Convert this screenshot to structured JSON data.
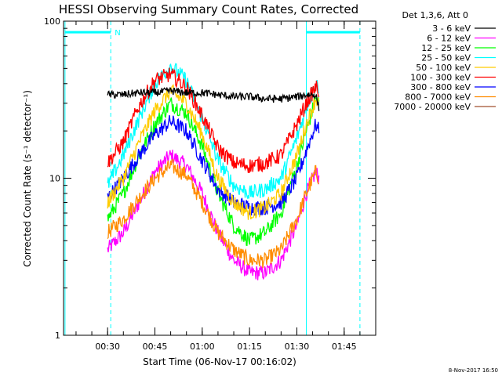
{
  "chart_data": {
    "type": "line",
    "title": "HESSI Observing Summary Count Rates, Corrected",
    "xlabel": "Start Time (06-Nov-17 00:16:02)",
    "ylabel": "Corrected Count Rate (s⁻¹ detector⁻¹)",
    "y_scale": "log",
    "ylim": [
      1,
      100
    ],
    "xlim": [
      "00:16:02",
      "01:55:00"
    ],
    "x_ticks": [
      "00:30",
      "00:45",
      "01:00",
      "01:15",
      "01:30",
      "01:45"
    ],
    "y_ticks": [
      "1",
      "10",
      "100"
    ],
    "legend_title": "Det 1,3,6, Att 0",
    "legend_position": "right",
    "timestamp": "8-Nov-2017 16:50",
    "annotations": [
      {
        "time": "00:31",
        "label": "N"
      }
    ],
    "markers": {
      "solid_vertical": [
        "00:16:30",
        "01:33"
      ],
      "dashed_vertical": [
        "00:31",
        "01:50"
      ],
      "horizontal_bars": [
        {
          "from": "00:16:30",
          "to": "00:31",
          "value": 85
        },
        {
          "from": "01:33",
          "to": "01:50",
          "value": 85
        }
      ]
    },
    "series": [
      {
        "name": "3 - 6 keV",
        "color": "#000000",
        "x": [
          "00:30",
          "00:35",
          "00:40",
          "00:45",
          "00:50",
          "00:55",
          "01:00",
          "01:05",
          "01:10",
          "01:15",
          "01:20",
          "01:25",
          "01:30",
          "01:33",
          "01:36",
          "01:37"
        ],
        "y": [
          34,
          34,
          35,
          35,
          36,
          35,
          35,
          34,
          33,
          33,
          32,
          32,
          33,
          34,
          34,
          28
        ]
      },
      {
        "name": "6 - 12 keV",
        "color": "#ff00ff",
        "x": [
          "00:30",
          "00:35",
          "00:40",
          "00:45",
          "00:50",
          "00:55",
          "01:00",
          "01:05",
          "01:10",
          "01:15",
          "01:20",
          "01:25",
          "01:30",
          "01:33",
          "01:36",
          "01:37"
        ],
        "y": [
          3.5,
          4.5,
          7,
          11,
          14,
          12,
          8,
          4.5,
          3,
          2.5,
          2.5,
          3,
          5,
          8,
          11,
          10
        ]
      },
      {
        "name": "12 - 25 keV",
        "color": "#00ff00",
        "x": [
          "00:30",
          "00:35",
          "00:40",
          "00:45",
          "00:50",
          "00:55",
          "01:00",
          "01:05",
          "01:10",
          "01:15",
          "01:20",
          "01:25",
          "01:30",
          "01:33",
          "01:36",
          "01:37"
        ],
        "y": [
          5.5,
          8,
          14,
          22,
          30,
          26,
          16,
          8,
          5,
          4,
          4.5,
          6,
          12,
          20,
          32,
          30
        ]
      },
      {
        "name": "25 - 50 keV",
        "color": "#00ffff",
        "x": [
          "00:30",
          "00:35",
          "00:40",
          "00:45",
          "00:50",
          "00:55",
          "01:00",
          "01:05",
          "01:10",
          "01:15",
          "01:20",
          "01:25",
          "01:30",
          "01:33",
          "01:36",
          "01:37"
        ],
        "y": [
          9,
          14,
          24,
          40,
          52,
          42,
          24,
          13,
          9,
          8,
          8.5,
          10,
          18,
          28,
          40,
          38
        ]
      },
      {
        "name": "50 - 100 keV",
        "color": "#ffcc00",
        "x": [
          "00:30",
          "00:35",
          "00:40",
          "00:45",
          "00:50",
          "00:55",
          "01:00",
          "01:05",
          "01:10",
          "01:15",
          "01:20",
          "01:25",
          "01:30",
          "01:33",
          "01:36",
          "01:37"
        ],
        "y": [
          7,
          10,
          17,
          27,
          36,
          30,
          19,
          10,
          7,
          6,
          6.5,
          8,
          14,
          22,
          32,
          30
        ]
      },
      {
        "name": "100 - 300 keV",
        "color": "#ff0000",
        "x": [
          "00:30",
          "00:35",
          "00:40",
          "00:45",
          "00:50",
          "00:55",
          "01:00",
          "01:05",
          "01:10",
          "01:15",
          "01:20",
          "01:25",
          "01:30",
          "01:33",
          "01:36",
          "01:37"
        ],
        "y": [
          12.5,
          17,
          29,
          42,
          46,
          38,
          25,
          15.5,
          12.5,
          12,
          12.5,
          14,
          22,
          30,
          38,
          36
        ]
      },
      {
        "name": "300 - 800 keV",
        "color": "#0000ff",
        "x": [
          "00:30",
          "00:35",
          "00:40",
          "00:45",
          "00:50",
          "00:55",
          "01:00",
          "01:05",
          "01:10",
          "01:15",
          "01:20",
          "01:25",
          "01:30",
          "01:33",
          "01:36",
          "01:37"
        ],
        "y": [
          7.5,
          10,
          14,
          19,
          23,
          20,
          13,
          8.5,
          7,
          6.5,
          6.5,
          7,
          10,
          15,
          22,
          20
        ]
      },
      {
        "name": "800 - 7000 keV",
        "color": "#ff8c00",
        "x": [
          "00:30",
          "00:35",
          "00:40",
          "00:45",
          "00:50",
          "00:55",
          "01:00",
          "01:05",
          "01:10",
          "01:15",
          "01:20",
          "01:25",
          "01:30",
          "01:33",
          "01:36",
          "01:37"
        ],
        "y": [
          4.5,
          5.5,
          7.5,
          10,
          12,
          10.5,
          7,
          4.5,
          3.5,
          3,
          3,
          3.5,
          5.5,
          8,
          11,
          10
        ]
      },
      {
        "name": "7000 - 20000 keV",
        "color": "#a0522d",
        "x": [],
        "y": []
      }
    ]
  }
}
